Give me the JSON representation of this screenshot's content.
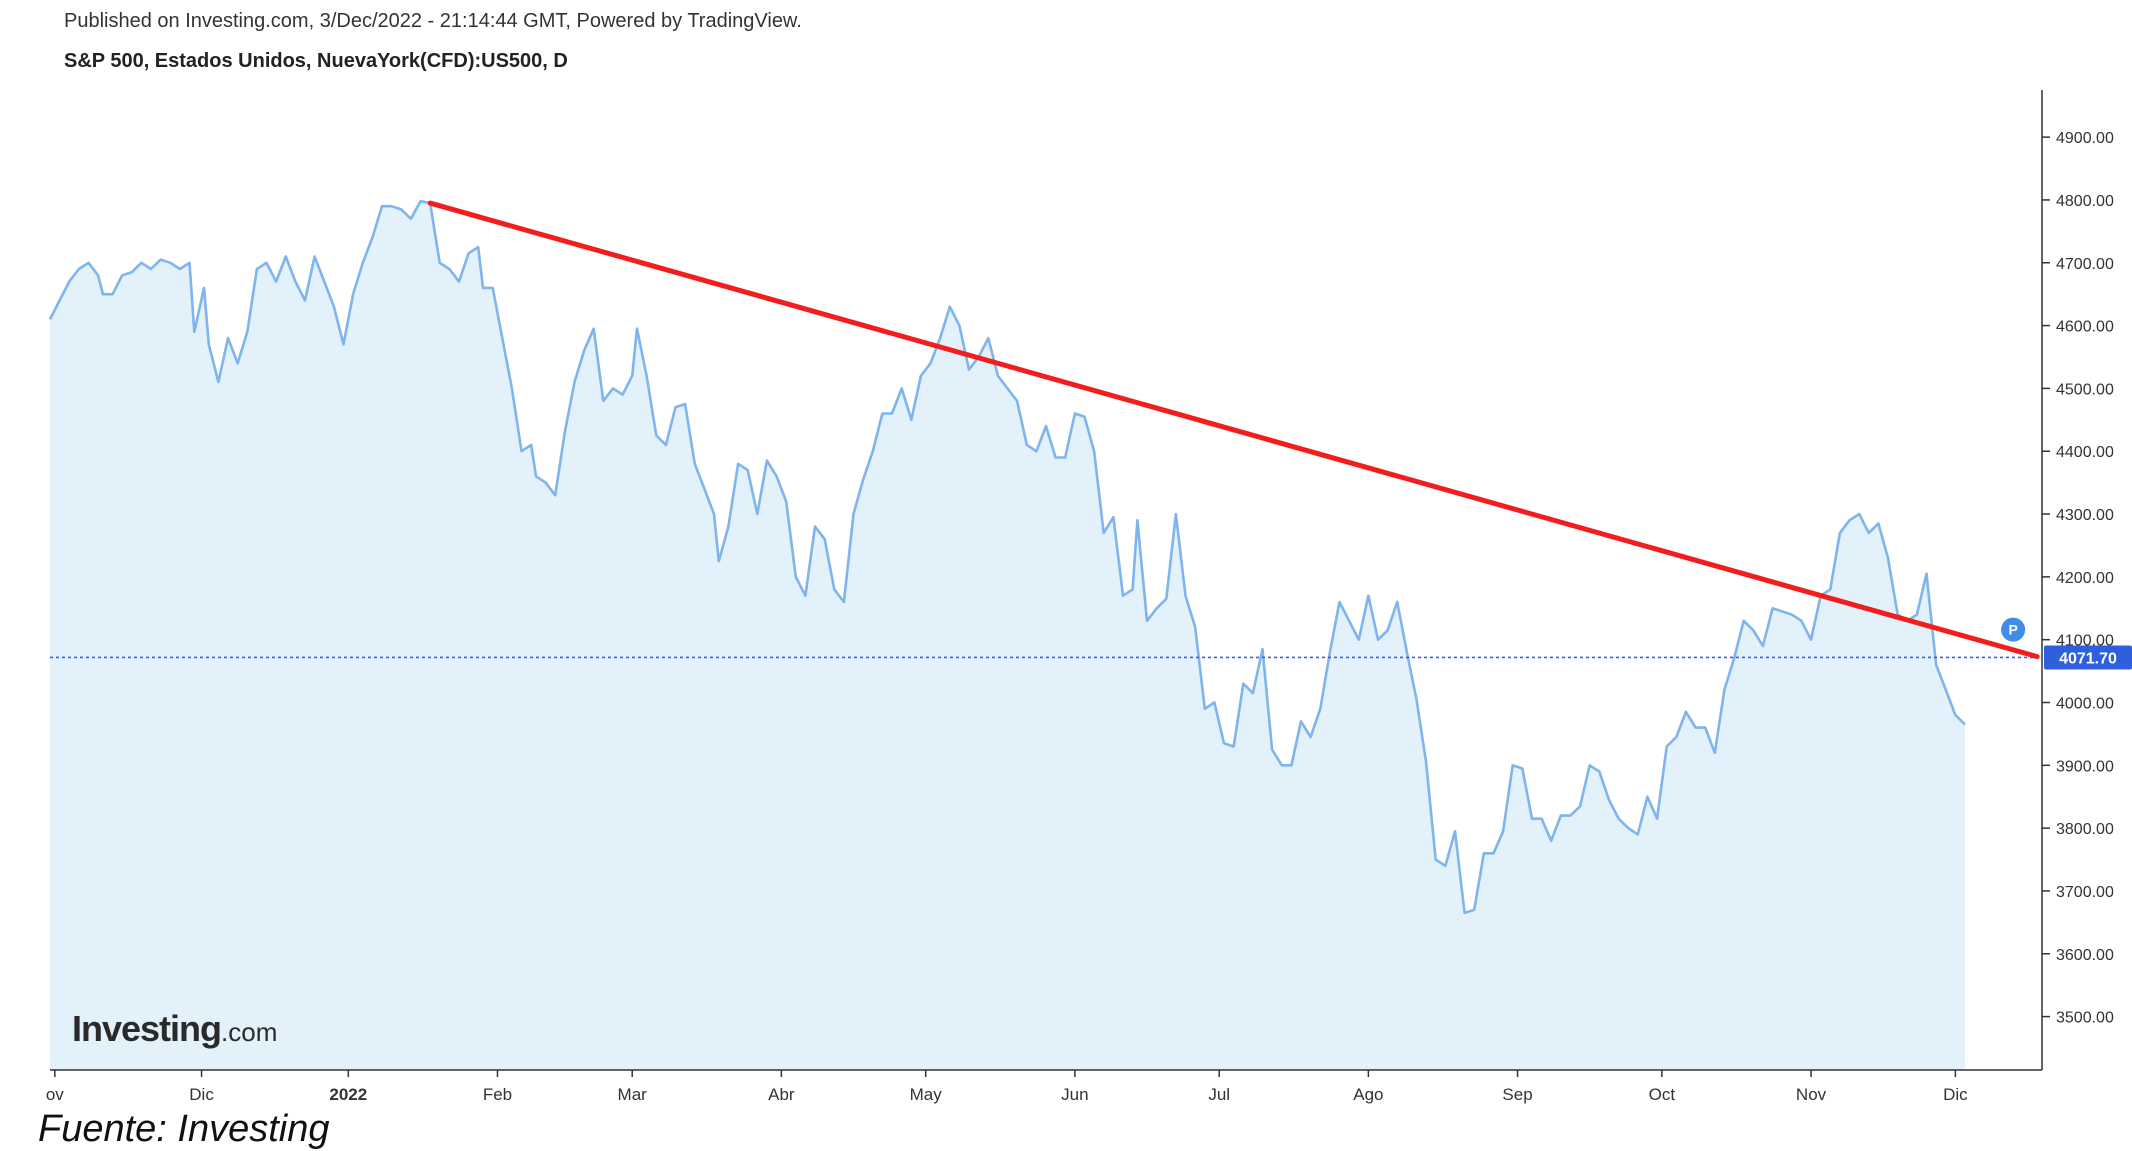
{
  "header": {
    "published": "Published on Investing.com, 3/Dec/2022 - 21:14:44 GMT, Powered by TradingView.",
    "symbol": "S&P 500, Estados Unidos, NuevaYork(CFD):US500, D"
  },
  "brand": {
    "name": "Investing",
    "suffix": ".com"
  },
  "source": "Fuente: Investing",
  "colors": {
    "line": "#7fb4ec",
    "fill": "#e3f1fb",
    "trendline": "#f21d1d",
    "price_line": "#3a5fd6",
    "price_badge": "#2f5fdc",
    "marker": "#3f8de8",
    "axis": "#333333"
  },
  "chart_data": {
    "type": "area",
    "title": "S&P 500, Estados Unidos, NuevaYork(CFD):US500, D",
    "ylim": [
      3415,
      4975
    ],
    "y_ticks": [
      "4900.00",
      "4800.00",
      "4700.00",
      "4600.00",
      "4500.00",
      "4400.00",
      "4300.00",
      "4200.00",
      "4100.00",
      "4000.00",
      "3900.00",
      "3800.00",
      "3700.00",
      "3600.00",
      "3500.00"
    ],
    "x_labels": [
      "ov",
      "Dic",
      "2022",
      "Feb",
      "Mar",
      "Abr",
      "May",
      "Jun",
      "Jul",
      "Ago",
      "Sep",
      "Oct",
      "Nov",
      "Dic"
    ],
    "x_label_days": [
      0,
      30.5,
      61,
      92,
      120,
      151,
      181,
      212,
      242,
      273,
      304,
      334,
      365,
      395
    ],
    "x_domain": [
      -1,
      413
    ],
    "grid": false,
    "series": [
      {
        "values": [
          [
            -1,
            4610
          ],
          [
            1,
            4640
          ],
          [
            3,
            4670
          ],
          [
            5,
            4690
          ],
          [
            7,
            4700
          ],
          [
            9,
            4680
          ],
          [
            10,
            4650
          ],
          [
            12,
            4650
          ],
          [
            14,
            4680
          ],
          [
            16,
            4685
          ],
          [
            18,
            4700
          ],
          [
            20,
            4690
          ],
          [
            22,
            4705
          ],
          [
            24,
            4700
          ],
          [
            26,
            4690
          ],
          [
            28,
            4700
          ],
          [
            29,
            4590
          ],
          [
            31,
            4660
          ],
          [
            32,
            4570
          ],
          [
            34,
            4510
          ],
          [
            36,
            4580
          ],
          [
            38,
            4540
          ],
          [
            40,
            4590
          ],
          [
            42,
            4690
          ],
          [
            44,
            4700
          ],
          [
            46,
            4670
          ],
          [
            48,
            4710
          ],
          [
            50,
            4670
          ],
          [
            52,
            4640
          ],
          [
            54,
            4710
          ],
          [
            56,
            4670
          ],
          [
            58,
            4630
          ],
          [
            60,
            4570
          ],
          [
            62,
            4650
          ],
          [
            64,
            4700
          ],
          [
            66,
            4740
          ],
          [
            68,
            4790
          ],
          [
            70,
            4790
          ],
          [
            72,
            4785
          ],
          [
            74,
            4770
          ],
          [
            76,
            4798
          ],
          [
            78,
            4795
          ],
          [
            80,
            4700
          ],
          [
            82,
            4690
          ],
          [
            84,
            4670
          ],
          [
            86,
            4715
          ],
          [
            88,
            4725
          ],
          [
            89,
            4660
          ],
          [
            91,
            4660
          ],
          [
            93,
            4580
          ],
          [
            95,
            4500
          ],
          [
            97,
            4400
          ],
          [
            99,
            4410
          ],
          [
            100,
            4360
          ],
          [
            102,
            4350
          ],
          [
            104,
            4330
          ],
          [
            106,
            4430
          ],
          [
            108,
            4510
          ],
          [
            110,
            4560
          ],
          [
            112,
            4595
          ],
          [
            114,
            4480
          ],
          [
            116,
            4500
          ],
          [
            118,
            4490
          ],
          [
            120,
            4520
          ],
          [
            121,
            4595
          ],
          [
            123,
            4520
          ],
          [
            125,
            4425
          ],
          [
            127,
            4410
          ],
          [
            129,
            4470
          ],
          [
            131,
            4475
          ],
          [
            133,
            4380
          ],
          [
            135,
            4340
          ],
          [
            137,
            4300
          ],
          [
            138,
            4225
          ],
          [
            140,
            4280
          ],
          [
            142,
            4380
          ],
          [
            144,
            4370
          ],
          [
            146,
            4300
          ],
          [
            148,
            4385
          ],
          [
            150,
            4360
          ],
          [
            152,
            4320
          ],
          [
            154,
            4200
          ],
          [
            156,
            4170
          ],
          [
            158,
            4280
          ],
          [
            160,
            4260
          ],
          [
            162,
            4180
          ],
          [
            164,
            4160
          ],
          [
            166,
            4300
          ],
          [
            168,
            4355
          ],
          [
            170,
            4400
          ],
          [
            172,
            4460
          ],
          [
            174,
            4460
          ],
          [
            176,
            4500
          ],
          [
            178,
            4450
          ],
          [
            180,
            4520
          ],
          [
            182,
            4540
          ],
          [
            184,
            4580
          ],
          [
            186,
            4630
          ],
          [
            188,
            4600
          ],
          [
            190,
            4530
          ],
          [
            192,
            4550
          ],
          [
            194,
            4580
          ],
          [
            196,
            4520
          ],
          [
            198,
            4500
          ],
          [
            200,
            4480
          ],
          [
            202,
            4410
          ],
          [
            204,
            4400
          ],
          [
            206,
            4440
          ],
          [
            208,
            4390
          ],
          [
            210,
            4390
          ],
          [
            212,
            4460
          ],
          [
            214,
            4455
          ],
          [
            216,
            4400
          ],
          [
            218,
            4270
          ],
          [
            220,
            4295
          ],
          [
            222,
            4170
          ],
          [
            224,
            4180
          ],
          [
            225,
            4290
          ],
          [
            227,
            4130
          ],
          [
            229,
            4150
          ],
          [
            231,
            4165
          ],
          [
            233,
            4300
          ],
          [
            235,
            4170
          ],
          [
            237,
            4120
          ],
          [
            239,
            3990
          ],
          [
            241,
            4000
          ],
          [
            243,
            3935
          ],
          [
            245,
            3930
          ],
          [
            247,
            4030
          ],
          [
            249,
            4015
          ],
          [
            251,
            4085
          ],
          [
            253,
            3925
          ],
          [
            255,
            3900
          ],
          [
            257,
            3900
          ],
          [
            259,
            3970
          ],
          [
            261,
            3945
          ],
          [
            263,
            3990
          ],
          [
            265,
            4080
          ],
          [
            267,
            4160
          ],
          [
            269,
            4130
          ],
          [
            271,
            4100
          ],
          [
            273,
            4170
          ],
          [
            275,
            4100
          ],
          [
            277,
            4115
          ],
          [
            279,
            4160
          ],
          [
            281,
            4080
          ],
          [
            283,
            4005
          ],
          [
            285,
            3905
          ],
          [
            287,
            3750
          ],
          [
            289,
            3740
          ],
          [
            291,
            3795
          ],
          [
            293,
            3665
          ],
          [
            295,
            3670
          ],
          [
            297,
            3760
          ],
          [
            299,
            3760
          ],
          [
            301,
            3795
          ],
          [
            303,
            3900
          ],
          [
            305,
            3895
          ],
          [
            307,
            3815
          ],
          [
            309,
            3815
          ],
          [
            311,
            3780
          ],
          [
            313,
            3820
          ],
          [
            315,
            3820
          ],
          [
            317,
            3835
          ],
          [
            319,
            3900
          ],
          [
            321,
            3890
          ],
          [
            323,
            3845
          ],
          [
            325,
            3815
          ],
          [
            327,
            3800
          ],
          [
            329,
            3790
          ],
          [
            331,
            3850
          ],
          [
            333,
            3815
          ],
          [
            335,
            3930
          ],
          [
            337,
            3945
          ],
          [
            339,
            3985
          ],
          [
            341,
            3960
          ],
          [
            343,
            3960
          ],
          [
            345,
            3920
          ],
          [
            347,
            4020
          ],
          [
            349,
            4070
          ],
          [
            351,
            4130
          ],
          [
            353,
            4115
          ],
          [
            355,
            4090
          ],
          [
            357,
            4150
          ],
          [
            359,
            4145
          ],
          [
            361,
            4140
          ],
          [
            363,
            4130
          ],
          [
            365,
            4100
          ],
          [
            367,
            4170
          ],
          [
            369,
            4180
          ],
          [
            371,
            4270
          ],
          [
            373,
            4290
          ],
          [
            375,
            4300
          ],
          [
            377,
            4270
          ],
          [
            379,
            4285
          ],
          [
            381,
            4230
          ],
          [
            383,
            4140
          ],
          [
            385,
            4130
          ],
          [
            387,
            4140
          ],
          [
            389,
            4205
          ],
          [
            391,
            4060
          ],
          [
            393,
            4020
          ],
          [
            395,
            3980
          ],
          [
            397,
            3965
          ]
        ]
      }
    ],
    "current_price": 4071.7,
    "current_price_label": "4071.70",
    "marker_label": "P",
    "trendline": {
      "from": [
        78,
        4795
      ],
      "to": [
        412,
        4073
      ]
    }
  }
}
